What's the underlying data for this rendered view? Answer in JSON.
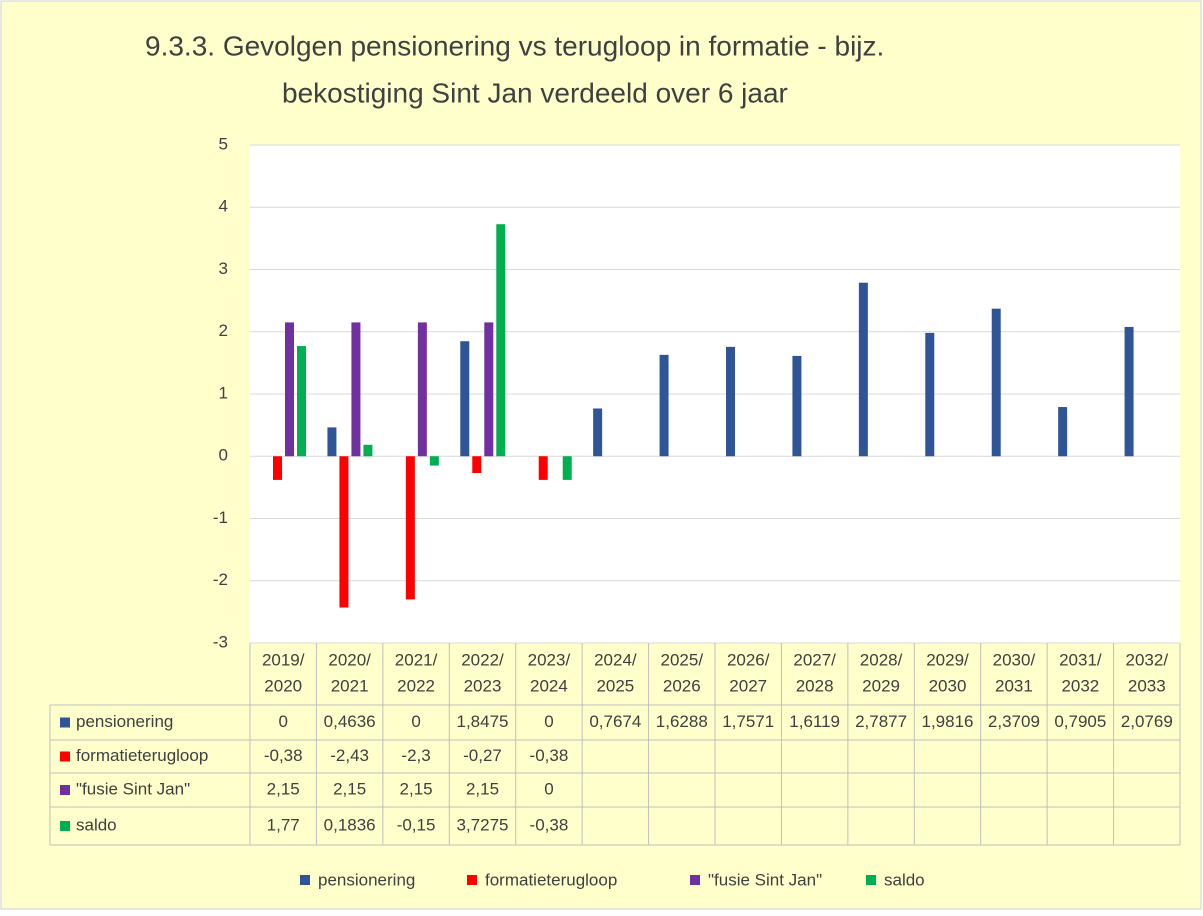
{
  "chart_data": {
    "type": "bar",
    "title": [
      "9.3.3. Gevolgen pensionering vs terugloop in formatie - bijz.",
      "bekostiging Sint Jan verdeeld over 6 jaar"
    ],
    "categories": [
      [
        "2019/",
        "2020"
      ],
      [
        "2020/",
        "2021"
      ],
      [
        "2021/",
        "2022"
      ],
      [
        "2022/",
        "2023"
      ],
      [
        "2023/",
        "2024"
      ],
      [
        "2024/",
        "2025"
      ],
      [
        "2025/",
        "2026"
      ],
      [
        "2026/",
        "2027"
      ],
      [
        "2027/",
        "2028"
      ],
      [
        "2028/",
        "2029"
      ],
      [
        "2029/",
        "2030"
      ],
      [
        "2030/",
        "2031"
      ],
      [
        "2031/",
        "2032"
      ],
      [
        "2032/",
        "2033"
      ]
    ],
    "series": [
      {
        "name": "pensionering",
        "color": "#2f5597",
        "values": [
          0,
          0.4636,
          0,
          1.8475,
          0,
          0.7674,
          1.6288,
          1.7571,
          1.6119,
          2.7877,
          1.9816,
          2.3709,
          0.7905,
          2.0769
        ],
        "value_labels": [
          "0",
          "0,4636",
          "0",
          "1,8475",
          "0",
          "0,7674",
          "1,6288",
          "1,7571",
          "1,6119",
          "2,7877",
          "1,9816",
          "2,3709",
          "0,7905",
          "2,0769"
        ]
      },
      {
        "name": "formatieterugloop",
        "color": "#ff0000",
        "values": [
          -0.38,
          -2.43,
          -2.3,
          -0.27,
          -0.38,
          null,
          null,
          null,
          null,
          null,
          null,
          null,
          null,
          null
        ],
        "value_labels": [
          "-0,38",
          "-2,43",
          "-2,3",
          "-0,27",
          "-0,38",
          null,
          null,
          null,
          null,
          null,
          null,
          null,
          null,
          null
        ]
      },
      {
        "name": "\"fusie Sint Jan\"",
        "color": "#7030a0",
        "values": [
          2.15,
          2.15,
          2.15,
          2.15,
          0,
          null,
          null,
          null,
          null,
          null,
          null,
          null,
          null,
          null
        ],
        "value_labels": [
          "2,15",
          "2,15",
          "2,15",
          "2,15",
          "0",
          null,
          null,
          null,
          null,
          null,
          null,
          null,
          null,
          null
        ]
      },
      {
        "name": "saldo",
        "color": "#00b050",
        "values": [
          1.77,
          0.1836,
          -0.15,
          3.7275,
          -0.38,
          null,
          null,
          null,
          null,
          null,
          null,
          null,
          null,
          null
        ],
        "value_labels": [
          "1,77",
          "0,1836",
          "-0,15",
          "3,7275",
          "-0,38",
          null,
          null,
          null,
          null,
          null,
          null,
          null,
          null,
          null
        ]
      }
    ],
    "ylim": [
      -3,
      5
    ],
    "yticks": [
      -3,
      -2,
      -1,
      0,
      1,
      2,
      3,
      4,
      5
    ],
    "grid": true,
    "legend": "bottom"
  }
}
